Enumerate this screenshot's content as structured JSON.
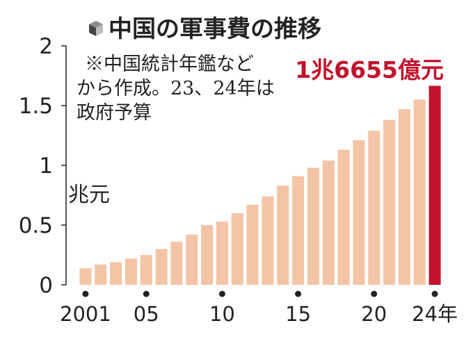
{
  "title": "中国の軍事費の推移",
  "title_icon": "cube-icon",
  "note_lines": [
    "※中国統計年鑑など",
    "から作成。23、24年は",
    "政府予算"
  ],
  "unit_label": "兆元",
  "highlight_label": "1兆6655億元",
  "colors": {
    "bar": "#f3c4a6",
    "highlight": "#c3122c",
    "text": "#222222"
  },
  "chart_data": {
    "type": "bar",
    "categories": [
      "2001",
      "2002",
      "2003",
      "2004",
      "2005",
      "2006",
      "2007",
      "2008",
      "2009",
      "2010",
      "2011",
      "2012",
      "2013",
      "2014",
      "2015",
      "2016",
      "2017",
      "2018",
      "2019",
      "2020",
      "2021",
      "2022",
      "2023",
      "2024"
    ],
    "values": [
      0.14,
      0.17,
      0.19,
      0.22,
      0.25,
      0.3,
      0.36,
      0.42,
      0.5,
      0.53,
      0.6,
      0.67,
      0.74,
      0.83,
      0.91,
      0.98,
      1.04,
      1.13,
      1.21,
      1.29,
      1.38,
      1.47,
      1.55,
      1.6655
    ],
    "highlight_index": 23,
    "ylim": [
      0,
      2
    ],
    "yticks": [
      "0",
      "0.5",
      "1",
      "1.5",
      "2"
    ],
    "xtick_labels": [
      {
        "index": 0,
        "label": "2001"
      },
      {
        "index": 4,
        "label": "05"
      },
      {
        "index": 9,
        "label": "10"
      },
      {
        "index": 14,
        "label": "15"
      },
      {
        "index": 19,
        "label": "20"
      },
      {
        "index": 23,
        "label": "24年"
      }
    ],
    "grid": false
  }
}
